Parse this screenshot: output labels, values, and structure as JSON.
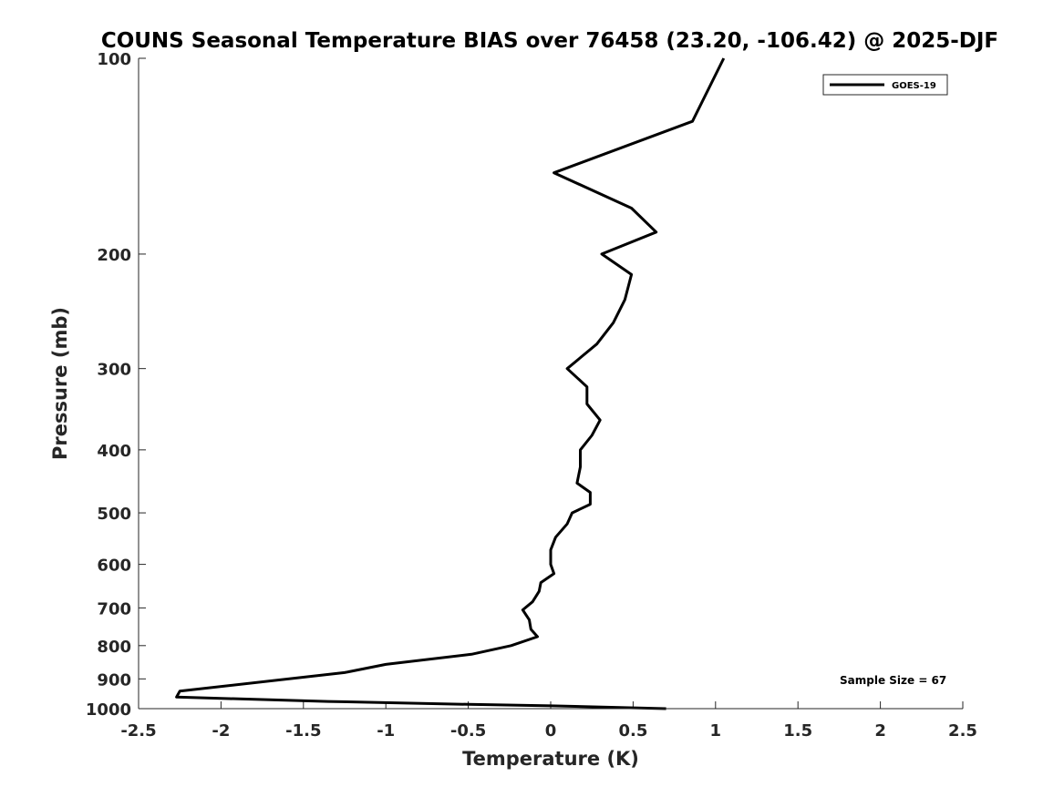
{
  "chart_data": {
    "type": "line",
    "title": "COUNS Seasonal Temperature BIAS over 76458 (23.20, -106.42) @ 2025-DJF",
    "xlabel": "Temperature (K)",
    "ylabel": "Pressure (mb)",
    "xlim": [
      -2.5,
      2.5
    ],
    "ylim": [
      100,
      1000
    ],
    "y_scale": "log",
    "y_reversed": true,
    "x_ticks": [
      "-2.5",
      "-2",
      "-1.5",
      "-1",
      "-0.5",
      "0",
      "0.5",
      "1",
      "1.5",
      "2",
      "2.5"
    ],
    "x_tick_values": [
      -2.5,
      -2,
      -1.5,
      -1,
      -0.5,
      0,
      0.5,
      1,
      1.5,
      2,
      2.5
    ],
    "y_ticks": [
      "100",
      "200",
      "300",
      "400",
      "500",
      "600",
      "700",
      "800",
      "900",
      "1000"
    ],
    "y_tick_values": [
      100,
      200,
      300,
      400,
      500,
      600,
      700,
      800,
      900,
      1000
    ],
    "grid": false,
    "legend_position": "top-right",
    "annotation": "Sample Size = 67",
    "series": [
      {
        "name": "GOES-19",
        "color": "#000000",
        "points": [
          {
            "x": 1.05,
            "p": 100
          },
          {
            "x": 0.86,
            "p": 125
          },
          {
            "x": 0.02,
            "p": 150
          },
          {
            "x": 0.49,
            "p": 170
          },
          {
            "x": 0.64,
            "p": 185
          },
          {
            "x": 0.31,
            "p": 200
          },
          {
            "x": 0.49,
            "p": 215
          },
          {
            "x": 0.45,
            "p": 235
          },
          {
            "x": 0.38,
            "p": 255
          },
          {
            "x": 0.28,
            "p": 275
          },
          {
            "x": 0.1,
            "p": 300
          },
          {
            "x": 0.22,
            "p": 320
          },
          {
            "x": 0.22,
            "p": 340
          },
          {
            "x": 0.3,
            "p": 360
          },
          {
            "x": 0.25,
            "p": 380
          },
          {
            "x": 0.18,
            "p": 400
          },
          {
            "x": 0.18,
            "p": 425
          },
          {
            "x": 0.16,
            "p": 450
          },
          {
            "x": 0.24,
            "p": 465
          },
          {
            "x": 0.24,
            "p": 485
          },
          {
            "x": 0.13,
            "p": 500
          },
          {
            "x": 0.1,
            "p": 520
          },
          {
            "x": 0.03,
            "p": 545
          },
          {
            "x": 0.0,
            "p": 570
          },
          {
            "x": 0.0,
            "p": 600
          },
          {
            "x": 0.02,
            "p": 620
          },
          {
            "x": -0.06,
            "p": 640
          },
          {
            "x": -0.07,
            "p": 660
          },
          {
            "x": -0.11,
            "p": 685
          },
          {
            "x": -0.17,
            "p": 705
          },
          {
            "x": -0.13,
            "p": 730
          },
          {
            "x": -0.12,
            "p": 755
          },
          {
            "x": -0.08,
            "p": 775
          },
          {
            "x": -0.24,
            "p": 800
          },
          {
            "x": -0.48,
            "p": 825
          },
          {
            "x": -1.0,
            "p": 855
          },
          {
            "x": -1.25,
            "p": 880
          },
          {
            "x": -2.25,
            "p": 940
          },
          {
            "x": -2.27,
            "p": 960
          },
          {
            "x": -1.35,
            "p": 975
          },
          {
            "x": -0.5,
            "p": 985
          },
          {
            "x": 0.0,
            "p": 990
          },
          {
            "x": 0.7,
            "p": 1000
          }
        ]
      }
    ]
  }
}
